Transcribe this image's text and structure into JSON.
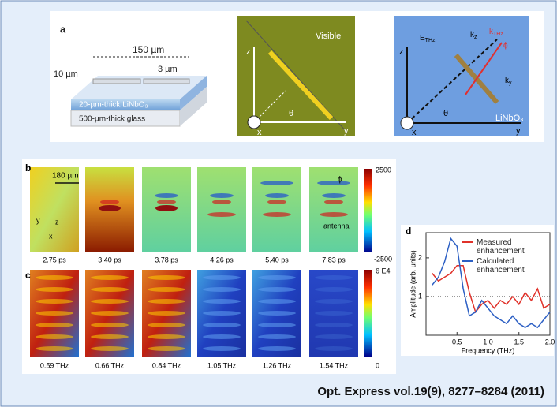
{
  "panel_a": {
    "label": "a",
    "width_total": "150 µm",
    "width_small": "10 µm",
    "gap": "3 µm",
    "layer_top": "20-µm-thick LiNbO₃",
    "layer_bottom": "500-µm-thick glass"
  },
  "panel_visible": {
    "title": "Visible",
    "z": "z",
    "y": "y",
    "x": "x",
    "theta": "θ"
  },
  "panel_linbo3": {
    "field": {
      "main": "E",
      "sub": "THz"
    },
    "kz": {
      "main": "k",
      "sub": "z"
    },
    "kthz": {
      "main": "k",
      "sub": "THz"
    },
    "ky": {
      "main": "k",
      "sub": "y"
    },
    "phi": "ϕ",
    "z": "z",
    "y": "y",
    "x": "x",
    "theta": "θ",
    "material": "LiNbO₃"
  },
  "panel_b": {
    "label": "b",
    "scale": "180 µm",
    "times": [
      "2.75 ps",
      "3.40 ps",
      "3.78 ps",
      "4.26 ps",
      "5.40 ps",
      "7.83 ps"
    ],
    "colorbar_max": "2500",
    "colorbar_min": "-2500",
    "phi": "ϕ",
    "antenna": "antenna",
    "axis_y": "y",
    "axis_z": "z",
    "axis_x": "x"
  },
  "panel_c": {
    "label": "c",
    "freqs": [
      "0.59 THz",
      "0.66 THz",
      "0.84 THz",
      "1.05 THz",
      "1.26 THz",
      "1.54 THz"
    ],
    "colorbar_max": "6 E4",
    "colorbar_min": "0"
  },
  "chart_data": {
    "type": "line",
    "panel_label": "d",
    "x_label": "Frequency (THz)",
    "y_label": "Amplitude (arb. units)",
    "x": [
      0.1,
      0.2,
      0.3,
      0.4,
      0.5,
      0.6,
      0.7,
      0.8,
      0.9,
      1.0,
      1.1,
      1.2,
      1.3,
      1.4,
      1.5,
      1.6,
      1.7,
      1.8,
      1.9,
      2.0
    ],
    "series": [
      {
        "name": "Measured enhancement",
        "color": "#e0322a",
        "values": [
          1.6,
          1.4,
          1.5,
          1.6,
          1.8,
          1.8,
          1.1,
          0.6,
          0.8,
          0.9,
          0.7,
          0.9,
          0.8,
          1.0,
          0.8,
          1.1,
          0.9,
          1.2,
          0.7,
          0.8
        ]
      },
      {
        "name": "Calculated enhancement",
        "color": "#2c5fc4",
        "values": [
          1.3,
          1.5,
          1.9,
          2.5,
          2.3,
          1.2,
          0.5,
          0.6,
          0.9,
          0.7,
          0.5,
          0.4,
          0.3,
          0.5,
          0.3,
          0.2,
          0.3,
          0.2,
          0.4,
          0.6
        ]
      }
    ],
    "xlim": [
      0,
      2
    ],
    "xticks": [
      0.5,
      {
        "value": 1,
        "label": "1.0"
      },
      1.5,
      {
        "value": 2,
        "label": "2.0"
      }
    ],
    "ylim": [
      0,
      2.65
    ],
    "yticks": [
      1,
      2
    ],
    "reference_line": true
  },
  "citation": "Opt. Express vol.19(9), 8277–8284 (2011)"
}
